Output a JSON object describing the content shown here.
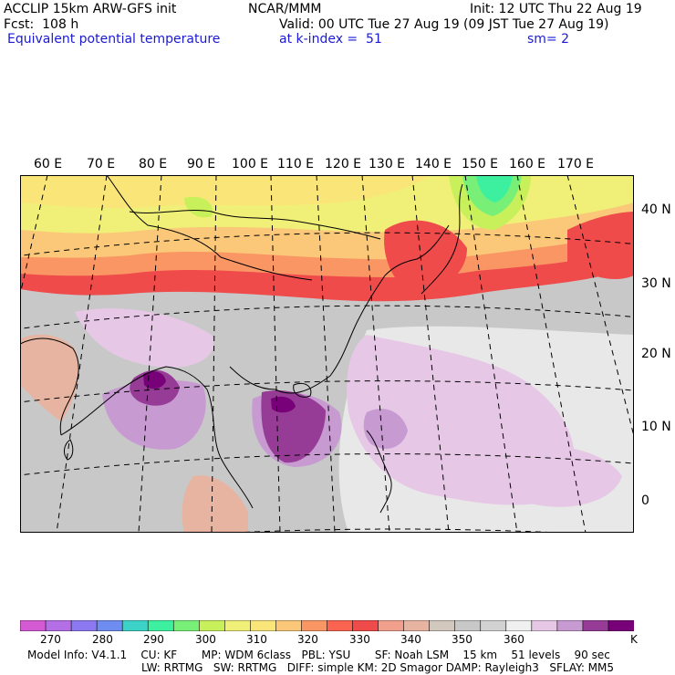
{
  "header": {
    "model": "ACCLIP 15km ARW-GFS init",
    "fcst": "Fcst:  108 h",
    "field": "Equivalent potential temperature",
    "center": "NCAR/MMM",
    "init": "Init: 12 UTC Thu 22 Aug 19",
    "valid": "Valid: 00 UTC Tue 27 Aug 19 (09 JST Tue 27 Aug 19)",
    "level": "at k-index =  51",
    "smoothing": "sm= 2"
  },
  "map": {
    "lon_labels": [
      "60 E",
      "70 E",
      "80 E",
      "90 E",
      "100 E",
      "110 E",
      "120 E",
      "130 E",
      "140 E",
      "150 E",
      "160 E",
      "170 E"
    ],
    "lat_labels": [
      "40 N",
      "30 N",
      "20 N",
      "10 N",
      "0"
    ]
  },
  "colorbar": {
    "unit": "K",
    "ticks": [
      "270",
      "280",
      "290",
      "300",
      "310",
      "320",
      "330",
      "340",
      "350",
      "360"
    ],
    "colors": [
      "#d45ad4",
      "#b46ee6",
      "#8c78f0",
      "#6f8cf0",
      "#3cd2c8",
      "#3cf0a0",
      "#78f078",
      "#c8f05a",
      "#f0f078",
      "#fae678",
      "#fac878",
      "#fa9664",
      "#fa6450",
      "#f04b4b",
      "#f0a08c",
      "#e6b4a0",
      "#d2c8be",
      "#c8c8c8",
      "#d2d2d2",
      "#f0f0f0",
      "#e6c8e6",
      "#c89ad2",
      "#963c96",
      "#780078"
    ]
  },
  "footer": {
    "line1": "Model Info: V4.1.1    CU: KF       MP: WDM 6class   PBL: YSU       SF: Noah LSM    15 km    51 levels    90 sec",
    "line2": "LW: RRTMG   SW: RRTMG   DIFF: simple KM: 2D Smagor DAMP: Rayleigh3   SFLAY: MM5"
  }
}
